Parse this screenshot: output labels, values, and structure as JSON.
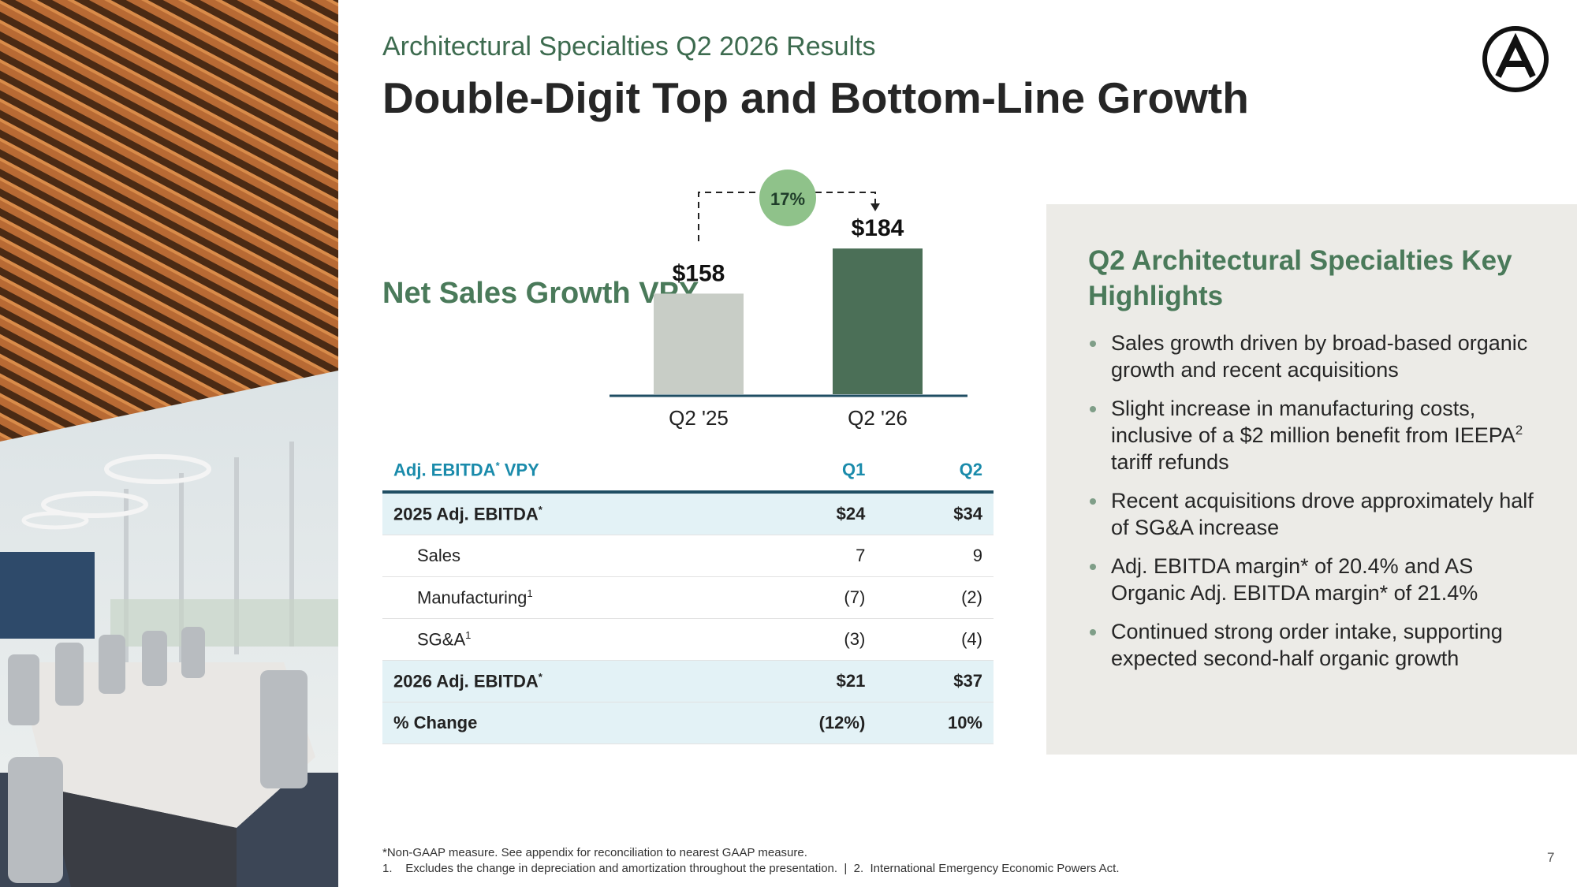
{
  "header": {
    "subtitle": "Architectural Specialties Q2 2026 Results",
    "title": "Double-Digit Top and Bottom-Line Growth"
  },
  "chart_data": {
    "type": "bar",
    "title": "Net Sales Growth VPY",
    "categories": [
      "Q2 '25",
      "Q2 '26"
    ],
    "values": [
      158,
      184
    ],
    "value_labels": [
      "$158",
      "$184"
    ],
    "colors": [
      "#c8cdc6",
      "#4b6f57"
    ],
    "ylim": [
      100,
      200
    ],
    "annotation": "17%"
  },
  "table": {
    "header": [
      [
        "Adj. EBITDA",
        {
          "sup": "*"
        },
        " VPY"
      ],
      "Q1",
      "Q2"
    ],
    "rows": [
      [
        [
          "2025 Adj. EBITDA",
          {
            "sup": "*"
          }
        ],
        "$24",
        "$34"
      ],
      [
        [
          "Sales"
        ],
        "7",
        "9"
      ],
      [
        [
          "Manufacturing",
          {
            "sup": "1"
          }
        ],
        "(7)",
        "(2)"
      ],
      [
        [
          "SG&A",
          {
            "sup": "1"
          }
        ],
        "(3)",
        "(4)"
      ],
      [
        [
          "2026 Adj. EBITDA",
          {
            "sup": "*"
          }
        ],
        "$21",
        "$37"
      ],
      [
        [
          "% Change"
        ],
        "(12%)",
        "10%"
      ]
    ]
  },
  "highlights": {
    "title": "Q2 Architectural Specialties Key Highlights",
    "bullets": [
      [
        "Sales growth driven by broad-based organic growth and recent acquisitions"
      ],
      [
        "Slight increase in manufacturing costs, inclusive of a $2 million benefit from IEEPA",
        {
          "sup": "2"
        },
        " tariff refunds"
      ],
      [
        "Recent acquisitions drove approximately half of SG&A increase"
      ],
      [
        "Adj. EBITDA margin* of 20.4% and AS Organic Adj. EBITDA margin* of 21.4%"
      ],
      [
        "Continued strong order intake, supporting expected second-half organic growth"
      ]
    ]
  },
  "footnotes": {
    "general": "*Non-GAAP measure. See appendix for reconciliation to nearest GAAP measure.",
    "numbered": [
      {
        "number": "1.",
        "text": "Excludes the change in depreciation and amortization throughout the presentation."
      },
      {
        "number": "2.",
        "text": "International Emergency Economic Powers Act."
      }
    ],
    "separator": "|"
  },
  "page_number": "7"
}
